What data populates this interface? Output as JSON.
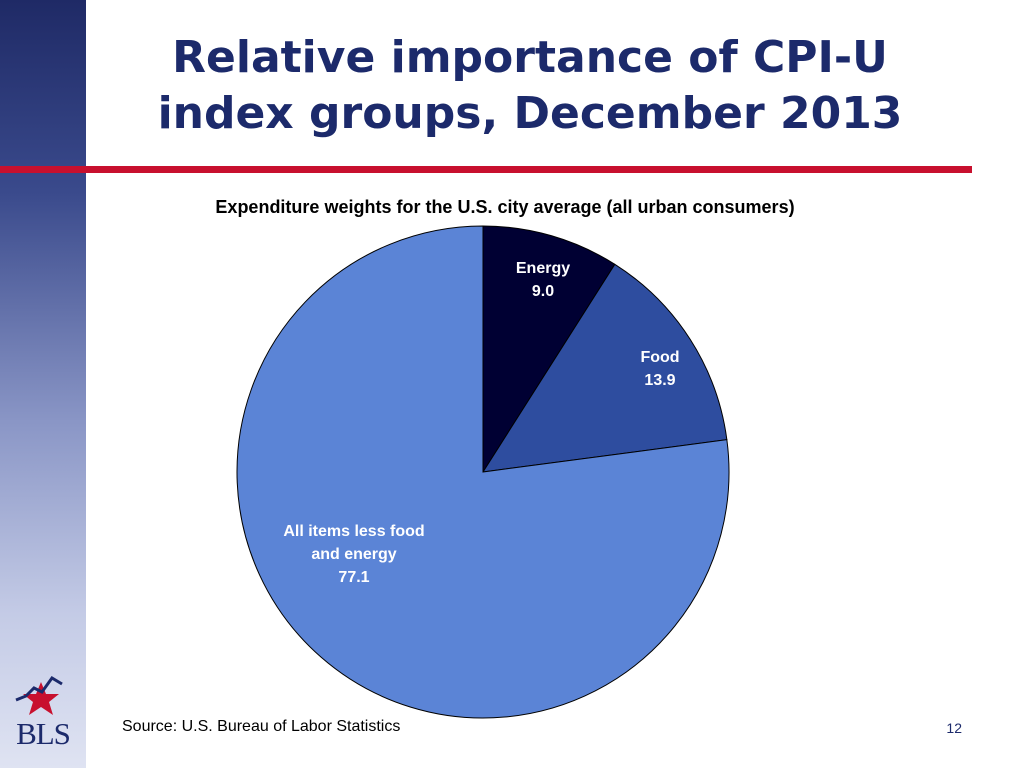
{
  "title": "Relative importance of CPI-U\nindex groups, December 2013",
  "colors": {
    "title": "#1c2a6b",
    "rule": "#c8102e",
    "slice_energy": "#000033",
    "slice_food": "#2e4d9f",
    "slice_core": "#5b84d6"
  },
  "chart_data": {
    "type": "pie",
    "title": "Expenditure weights for the U.S. city average (all urban consumers)",
    "slices": [
      {
        "label_lines": [
          "Energy"
        ],
        "value": 9.0,
        "value_text": "9.0",
        "color": "#000033"
      },
      {
        "label_lines": [
          "Food"
        ],
        "value": 13.9,
        "value_text": "13.9",
        "color": "#2e4d9f"
      },
      {
        "label_lines": [
          "All items less food",
          "and energy"
        ],
        "value": 77.1,
        "value_text": "77.1",
        "color": "#5b84d6"
      }
    ]
  },
  "source": "Source: U.S. Bureau of Labor Statistics",
  "page_number": "12",
  "logo": {
    "text": "BLS",
    "icon": "bls-star-logo"
  }
}
